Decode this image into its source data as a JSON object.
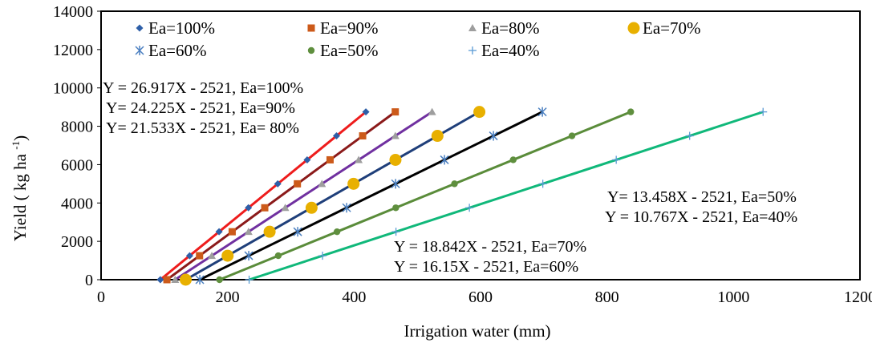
{
  "chart_data": {
    "type": "scatter",
    "xlabel": "Irrigation water (mm)",
    "ylabel": "Yield ( kg ha",
    "ylabel_sup": "-1",
    "ylabel_close": ")",
    "xlim": [
      0,
      1200
    ],
    "ylim": [
      0,
      14000
    ],
    "x_ticks": [
      "0",
      "200",
      "400",
      "600",
      "800",
      "1000",
      "1200"
    ],
    "y_ticks": [
      "0",
      "2000",
      "4000",
      "6000",
      "8000",
      "10000",
      "12000",
      "14000"
    ],
    "grid": false,
    "legend_position": "top",
    "series": [
      {
        "name": "Ea=100%",
        "marker": "diamond",
        "color": "#2e5fa8",
        "line_color": "#ee1c1c",
        "x": [
          93.7,
          140.1,
          186.6,
          233.0,
          279.4,
          325.9,
          372.3,
          418.7
        ],
        "y": [
          0,
          1250,
          2500,
          3750,
          5000,
          6250,
          7500,
          8750
        ]
      },
      {
        "name": "Ea=90%",
        "marker": "square",
        "color": "#cc5a1a",
        "line_color": "#8b1a1a",
        "x": [
          104.1,
          155.7,
          207.3,
          258.8,
          310.4,
          362.1,
          413.6,
          465.2
        ],
        "y": [
          0,
          1250,
          2500,
          3750,
          5000,
          6250,
          7500,
          8750
        ]
      },
      {
        "name": "Ea=80%",
        "marker": "triangle",
        "color": "#9e9e9e",
        "line_color": "#7030a0",
        "x": [
          117.1,
          175.1,
          233.2,
          291.2,
          349.2,
          407.3,
          465.3,
          523.4
        ],
        "y": [
          0,
          1250,
          2500,
          3750,
          5000,
          6250,
          7500,
          8750
        ]
      },
      {
        "name": "Ea=70%",
        "marker": "circle-large",
        "color": "#e8b000",
        "line_color": "#1f3f7a",
        "x": [
          133.8,
          200.1,
          266.5,
          332.8,
          399.2,
          465.5,
          531.9,
          598.2
        ],
        "y": [
          0,
          1250,
          2500,
          3750,
          5000,
          6250,
          7500,
          8750
        ]
      },
      {
        "name": "Ea=60%",
        "marker": "asterisk",
        "color": "#4a7fc0",
        "line_color": "#000000",
        "x": [
          156.1,
          233.5,
          310.9,
          388.3,
          465.7,
          543.0,
          620.4,
          697.8
        ],
        "y": [
          0,
          1250,
          2500,
          3750,
          5000,
          6250,
          7500,
          8750
        ]
      },
      {
        "name": "Ea=50%",
        "marker": "circle",
        "color": "#5f8f3e",
        "line_color": "#5a8c3a",
        "x": [
          187.3,
          280.2,
          373.1,
          466.0,
          558.8,
          651.7,
          744.6,
          837.5
        ],
        "y": [
          0,
          1250,
          2500,
          3750,
          5000,
          6250,
          7500,
          8750
        ]
      },
      {
        "name": "Ea=40%",
        "marker": "plus",
        "color": "#5b9bd5",
        "line_color": "#10b87a",
        "x": [
          234.1,
          350.2,
          466.3,
          582.4,
          698.5,
          814.6,
          930.7,
          1046.8
        ],
        "y": [
          0,
          1250,
          2500,
          3750,
          5000,
          6250,
          7500,
          8750
        ]
      }
    ],
    "annotations": [
      "Y = 26.917X - 2521, Ea=100%",
      "Y= 24.225X - 2521, Ea=90%",
      "Y= 21.533X - 2521, Ea= 80%",
      "Y= 13.458X - 2521, Ea=50%",
      "Y = 10.767X - 2521, Ea=40%",
      "Y = 18.842X - 2521, Ea=70%",
      "Y = 16.15X - 2521, Ea=60%"
    ]
  }
}
